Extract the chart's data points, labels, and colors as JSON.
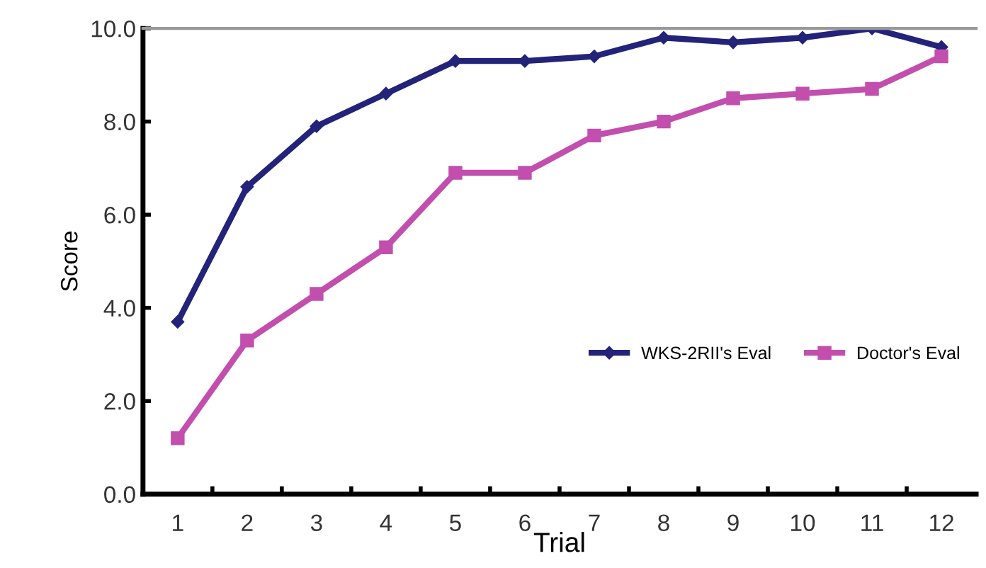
{
  "chart_data": {
    "type": "line",
    "xlabel": "Trial",
    "ylabel": "Score",
    "categories": [
      "1",
      "2",
      "3",
      "4",
      "5",
      "6",
      "7",
      "8",
      "9",
      "10",
      "11",
      "12"
    ],
    "series": [
      {
        "name": "WKS-2RII's Eval",
        "color": "#23237a",
        "marker": "diamond",
        "values": [
          3.7,
          6.6,
          7.9,
          8.6,
          9.3,
          9.3,
          9.4,
          9.8,
          9.7,
          9.8,
          10.0,
          9.6
        ]
      },
      {
        "name": "Doctor's Eval",
        "color": "#c24fae",
        "marker": "square",
        "values": [
          1.2,
          3.3,
          4.3,
          5.3,
          6.9,
          6.9,
          7.7,
          8.0,
          8.5,
          8.6,
          8.7,
          9.4
        ]
      }
    ],
    "ylim": [
      0,
      10
    ],
    "yticks": [
      {
        "value": 0,
        "label": "0.0"
      },
      {
        "value": 2,
        "label": "2.0"
      },
      {
        "value": 4,
        "label": "4.0"
      },
      {
        "value": 6,
        "label": "6.0"
      },
      {
        "value": 8,
        "label": "8.0"
      },
      {
        "value": 10,
        "label": "10.0"
      }
    ],
    "legend": "right",
    "grid": false,
    "line_style": "solid"
  }
}
